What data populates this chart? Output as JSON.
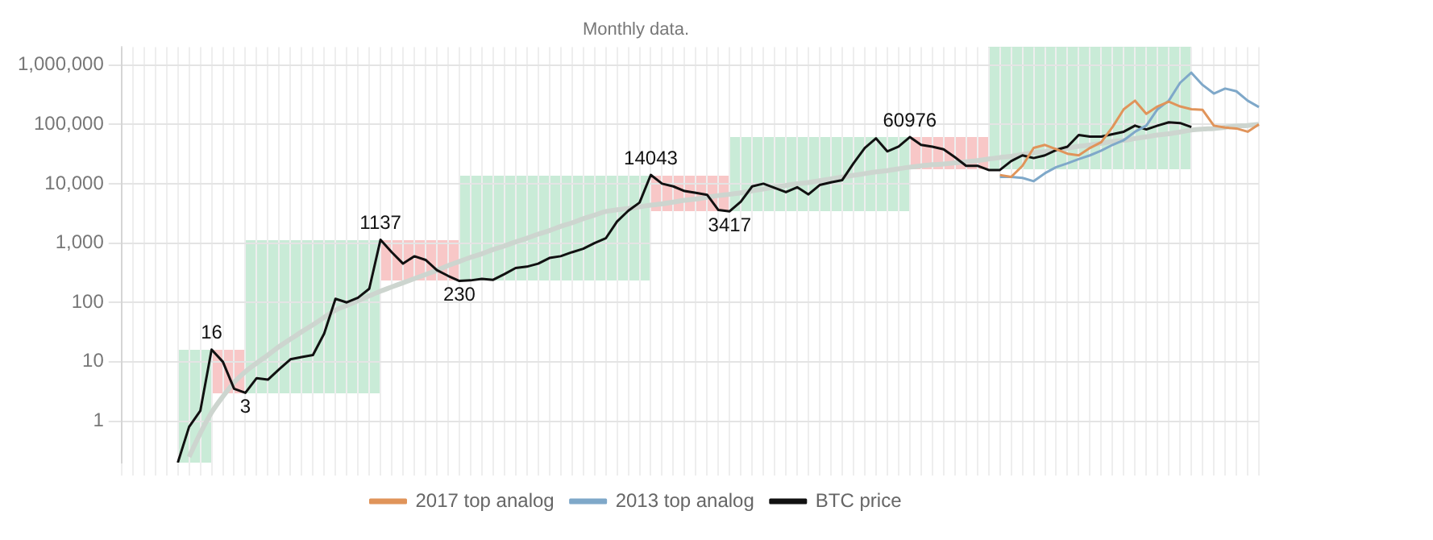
{
  "chart_data": {
    "type": "line",
    "subtitle": "Monthly data.",
    "categories": [
      null,
      null,
      null,
      null,
      null,
      null,
      null,
      null,
      null,
      null,
      null,
      null,
      null,
      null,
      null,
      null,
      null,
      null,
      null,
      null,
      null,
      null,
      null,
      null,
      null,
      null,
      null,
      null,
      null,
      null,
      null,
      null,
      null,
      null,
      null,
      null,
      null,
      null,
      null,
      null,
      null,
      null,
      null,
      null,
      null,
      null,
      null,
      null,
      null,
      null,
      null,
      null,
      null,
      null,
      null,
      null,
      null,
      null,
      null,
      null,
      null,
      null,
      null,
      null,
      null,
      null,
      null,
      null,
      null,
      null,
      null,
      null,
      null,
      null,
      null,
      null,
      null,
      null,
      null,
      null,
      null,
      null,
      null,
      null,
      null,
      null,
      null,
      null,
      null,
      null,
      null,
      null,
      null,
      null,
      null,
      null,
      null,
      null,
      null,
      null,
      null,
      null
    ],
    "series": [
      {
        "color": "#cdd5cf",
        "values": [
          null,
          null,
          null,
          null,
          null,
          null,
          0.25,
          0.63,
          1.4,
          2.6,
          4.5,
          6.8,
          9.5,
          13,
          18,
          24,
          32,
          42,
          56,
          74,
          89,
          107,
          129,
          155,
          182,
          214,
          251,
          295,
          347,
          417,
          490,
          575,
          661,
          776,
          891,
          1047,
          1202,
          1413,
          1622,
          1905,
          2188,
          2570,
          2951,
          3400,
          3631,
          3802,
          4074,
          4365,
          4571,
          4898,
          5248,
          5495,
          5888,
          6310,
          6607,
          7000,
          7586,
          8128,
          8710,
          9333,
          10000,
          10470,
          11220,
          12020,
          12880,
          13800,
          14790,
          15850,
          16600,
          17780,
          19000,
          19950,
          20890,
          21380,
          22390,
          23440,
          24550,
          26000,
          27540,
          28840,
          30900,
          33110,
          34670,
          37150,
          39810,
          42660,
          44670,
          47860,
          51290,
          53700,
          57540,
          61660,
          66070,
          69180,
          74130,
          80000,
          83180,
          85110,
          89130,
          93330,
          95500,
          100000
        ]
      },
      {
        "name": "2017 top analog",
        "color": "#e0945a",
        "values": [
          null,
          null,
          null,
          null,
          null,
          null,
          null,
          null,
          null,
          null,
          null,
          null,
          null,
          null,
          null,
          null,
          null,
          null,
          null,
          null,
          null,
          null,
          null,
          null,
          null,
          null,
          null,
          null,
          null,
          null,
          null,
          null,
          null,
          null,
          null,
          null,
          null,
          null,
          null,
          null,
          null,
          null,
          null,
          null,
          null,
          null,
          null,
          null,
          null,
          null,
          null,
          null,
          null,
          null,
          null,
          null,
          null,
          null,
          null,
          null,
          null,
          null,
          null,
          null,
          null,
          null,
          null,
          null,
          null,
          null,
          null,
          null,
          null,
          null,
          null,
          null,
          null,
          null,
          14000,
          13000,
          20000,
          40000,
          45000,
          38000,
          32000,
          30000,
          40000,
          50000,
          90000,
          180000,
          250000,
          150000,
          200000,
          240000,
          200000,
          180000,
          175000,
          95000,
          88000,
          85000,
          75000,
          100000
        ]
      },
      {
        "name": "2013 top analog",
        "color": "#7fa8c9",
        "values": [
          null,
          null,
          null,
          null,
          null,
          null,
          null,
          null,
          null,
          null,
          null,
          null,
          null,
          null,
          null,
          null,
          null,
          null,
          null,
          null,
          null,
          null,
          null,
          null,
          null,
          null,
          null,
          null,
          null,
          null,
          null,
          null,
          null,
          null,
          null,
          null,
          null,
          null,
          null,
          null,
          null,
          null,
          null,
          null,
          null,
          null,
          null,
          null,
          null,
          null,
          null,
          null,
          null,
          null,
          null,
          null,
          null,
          null,
          null,
          null,
          null,
          null,
          null,
          null,
          null,
          null,
          null,
          null,
          null,
          null,
          null,
          null,
          null,
          null,
          null,
          null,
          null,
          null,
          13000,
          13000,
          12500,
          11000,
          15000,
          19000,
          22000,
          26000,
          30000,
          36000,
          45000,
          54000,
          75000,
          95000,
          180000,
          250000,
          500000,
          740000,
          460000,
          330000,
          400000,
          360000,
          250000,
          195000
        ]
      },
      {
        "name": "BTC price",
        "color": "#111111",
        "values": [
          null,
          null,
          null,
          null,
          null,
          0.2,
          0.8,
          1.5,
          16,
          10,
          3.5,
          3,
          5.3,
          5,
          7.5,
          11,
          12,
          13,
          30,
          115,
          100,
          120,
          170,
          1137,
          700,
          450,
          600,
          520,
          350,
          280,
          230,
          235,
          250,
          240,
          300,
          380,
          400,
          450,
          560,
          600,
          700,
          800,
          1000,
          1200,
          2300,
          3500,
          4800,
          14043,
          10000,
          9000,
          7500,
          7000,
          6500,
          3600,
          3417,
          5000,
          9000,
          10000,
          8500,
          7200,
          8700,
          6600,
          9500,
          10500,
          11500,
          22000,
          40000,
          58000,
          35000,
          42000,
          60976,
          45000,
          42000,
          38000,
          28000,
          20000,
          20000,
          17000,
          17000,
          24000,
          30000,
          27000,
          30000,
          37000,
          42000,
          66000,
          62000,
          62000,
          68000,
          75000,
          95000,
          82000,
          95000,
          108000,
          105000,
          90000,
          null,
          null,
          null,
          null,
          null,
          null
        ],
        "value_labels": [
          null,
          null,
          null,
          null,
          null,
          null,
          null,
          null,
          "16",
          null,
          null,
          "3",
          null,
          null,
          null,
          null,
          null,
          null,
          null,
          null,
          null,
          null,
          null,
          "1137",
          null,
          null,
          null,
          null,
          null,
          null,
          "230",
          null,
          null,
          null,
          null,
          null,
          null,
          null,
          null,
          null,
          null,
          null,
          null,
          null,
          null,
          null,
          null,
          "14043",
          null,
          null,
          null,
          null,
          null,
          null,
          "3417",
          null,
          null,
          null,
          null,
          null,
          null,
          null,
          null,
          null,
          null,
          null,
          null,
          null,
          null,
          null,
          "60976",
          null,
          null,
          null,
          null,
          null,
          null,
          null,
          null,
          null,
          null,
          null,
          null,
          null,
          null,
          null,
          null,
          null,
          null,
          null,
          null,
          null,
          null,
          null,
          null,
          null,
          null,
          null,
          null,
          null,
          null,
          null
        ]
      }
    ],
    "log": "y",
    "ylim": [
      0.2,
      2000000
    ],
    "yticks": [
      1,
      10,
      100,
      {
        "value": 1000,
        "label": "1,000"
      },
      {
        "value": 10000,
        "label": "10,000"
      },
      {
        "value": 100000,
        "label": "100,000"
      },
      {
        "value": 1000000,
        "label": "1,000,000"
      }
    ],
    "grid": true,
    "legend": "bottom",
    "tick_labels": "y",
    "marker": "none",
    "line_style": "solid"
  }
}
